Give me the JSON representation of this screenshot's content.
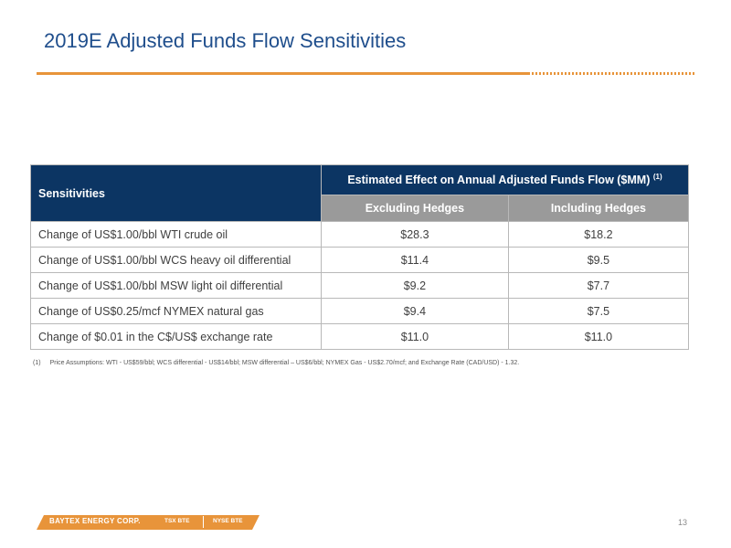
{
  "slide": {
    "title": "2019E Adjusted Funds Flow Sensitivities",
    "page_number": "13"
  },
  "table": {
    "header_sensitivities": "Sensitivities",
    "header_effect": "Estimated Effect on Annual Adjusted Funds Flow ($MM)",
    "header_effect_note": "(1)",
    "col_excluding": "Excluding Hedges",
    "col_including": "Including Hedges",
    "rows": [
      {
        "label": "Change of US$1.00/bbl WTI crude oil",
        "excluding": "$28.3",
        "including": "$18.2"
      },
      {
        "label": "Change of US$1.00/bbl WCS heavy oil differential",
        "excluding": "$11.4",
        "including": "$9.5"
      },
      {
        "label": "Change of US$1.00/bbl MSW light oil differential",
        "excluding": "$9.2",
        "including": "$7.7"
      },
      {
        "label": "Change of US$0.25/mcf NYMEX natural gas",
        "excluding": "$9.4",
        "including": "$7.5"
      },
      {
        "label": "Change of $0.01 in the C$/US$ exchange rate",
        "excluding": "$11.0",
        "including": "$11.0"
      }
    ]
  },
  "footnote": {
    "number": "(1)",
    "text": "Price Assumptions:  WTI - US$59/bbl; WCS differential - US$14/bbl; MSW differential – US$6/bbl; NYMEX Gas - US$2.70/mcf; and Exchange Rate (CAD/USD) - 1.32."
  },
  "footer": {
    "company": "BAYTEX ENERGY CORP.",
    "tsx": "TSX BTE",
    "nyse": "NYSE BTE"
  },
  "colors": {
    "accent_orange": "#e8943a",
    "header_navy": "#0c3563",
    "subheader_gray": "#9a9a9a",
    "title_blue": "#1f4e8c"
  }
}
